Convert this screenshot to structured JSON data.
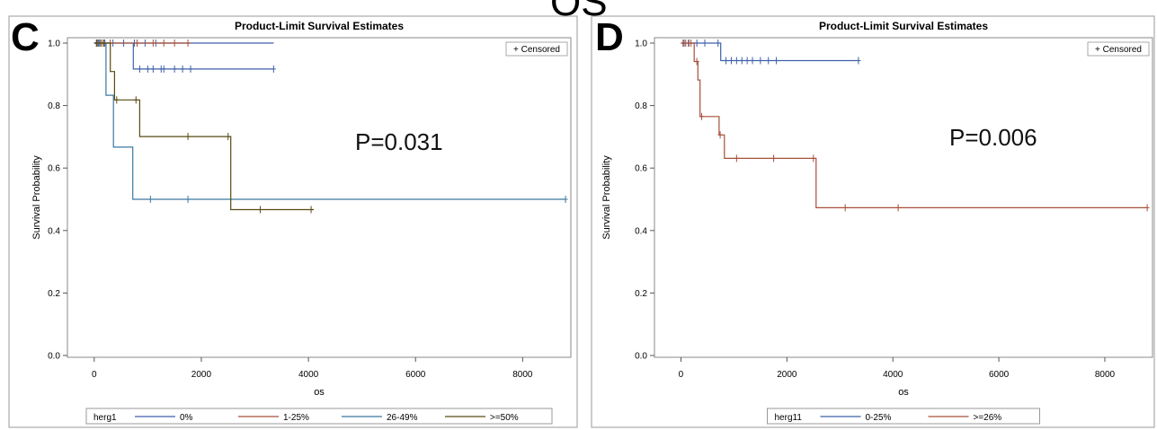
{
  "page_heading": "OS",
  "chart_data": [
    {
      "type": "line",
      "panel_letter": "C",
      "title": "Product-Limit Survival Estimates",
      "xlabel": "os",
      "ylabel": "Survival Probability",
      "xlim": [
        -500,
        8900
      ],
      "ylim": [
        0,
        1.0
      ],
      "x_ticks": [
        0,
        2000,
        4000,
        6000,
        8000
      ],
      "y_ticks": [
        0.0,
        0.2,
        0.4,
        0.6,
        0.8,
        1.0
      ],
      "grid": false,
      "censored_legend": "+ Censored",
      "p_value_text": "P=0.031",
      "legend_title": "herg1",
      "legend_position": "bottom",
      "series": [
        {
          "name": "0%",
          "color": "#3f5fa8",
          "steps": [
            [
              0,
              1.0
            ],
            [
              3350,
              1.0
            ]
          ],
          "censored": [
            [
              40,
              1.0
            ],
            [
              100,
              1.0
            ],
            [
              200,
              1.0
            ],
            [
              350,
              1.0
            ],
            [
              550,
              1.0
            ],
            [
              750,
              1.0
            ],
            [
              950,
              1.0
            ],
            [
              1150,
              1.0
            ]
          ]
        },
        {
          "name": "1-25%",
          "color": "#a5503a",
          "steps": [
            [
              0,
              1.0
            ],
            [
              1800,
              1.0
            ]
          ],
          "censored": [
            [
              60,
              1.0
            ],
            [
              150,
              1.0
            ],
            [
              300,
              1.0
            ],
            [
              800,
              1.0
            ],
            [
              1100,
              1.0
            ],
            [
              1300,
              1.0
            ],
            [
              1500,
              1.0
            ],
            [
              1750,
              1.0
            ]
          ]
        },
        {
          "name": "26-49%",
          "color": "#3a78a0",
          "steps": [
            [
              0,
              1.0
            ],
            [
              220,
              1.0
            ],
            [
              220,
              0.833
            ],
            [
              360,
              0.833
            ],
            [
              360,
              0.667
            ],
            [
              720,
              0.667
            ],
            [
              720,
              0.5
            ],
            [
              8800,
              0.5
            ]
          ],
          "censored": [
            [
              80,
              1.0
            ],
            [
              1050,
              0.5
            ],
            [
              1750,
              0.5
            ],
            [
              8800,
              0.5
            ]
          ]
        },
        {
          "name": ">=50%",
          "color": "#5a4a12",
          "steps": [
            [
              0,
              1.0
            ],
            [
              300,
              1.0
            ],
            [
              300,
              0.909
            ],
            [
              380,
              0.909
            ],
            [
              380,
              0.818
            ],
            [
              850,
              0.818
            ],
            [
              850,
              0.701
            ],
            [
              2550,
              0.701
            ],
            [
              2550,
              0.467
            ],
            [
              4100,
              0.467
            ]
          ],
          "censored": [
            [
              50,
              1.0
            ],
            [
              120,
              1.0
            ],
            [
              180,
              1.0
            ],
            [
              420,
              0.818
            ],
            [
              780,
              0.818
            ],
            [
              1750,
              0.701
            ],
            [
              2500,
              0.701
            ],
            [
              3100,
              0.467
            ],
            [
              4050,
              0.467
            ]
          ]
        },
        {
          "name": "0%",
          "color": "#3f5fa8",
          "steps": [
            [
              730,
              1.0
            ],
            [
              730,
              0.917
            ],
            [
              3350,
              0.917
            ]
          ],
          "censored": [
            [
              850,
              0.917
            ],
            [
              1000,
              0.917
            ],
            [
              1100,
              0.917
            ],
            [
              1250,
              0.917
            ],
            [
              1300,
              0.917
            ],
            [
              1500,
              0.917
            ],
            [
              1650,
              0.917
            ],
            [
              1800,
              0.917
            ],
            [
              3350,
              0.917
            ]
          ]
        }
      ]
    },
    {
      "type": "line",
      "panel_letter": "D",
      "title": "Product-Limit Survival Estimates",
      "xlabel": "os",
      "ylabel": "Survival Probability",
      "xlim": [
        -500,
        8900
      ],
      "ylim": [
        0,
        1.0
      ],
      "x_ticks": [
        0,
        2000,
        4000,
        6000,
        8000
      ],
      "y_ticks": [
        0.0,
        0.2,
        0.4,
        0.6,
        0.8,
        1.0
      ],
      "grid": false,
      "censored_legend": "+ Censored",
      "p_value_text": "P=0.006",
      "legend_title": "herg11",
      "legend_position": "bottom",
      "series": [
        {
          "name": "0-25%",
          "color": "#3f5fa8",
          "steps": [
            [
              0,
              1.0
            ],
            [
              750,
              1.0
            ],
            [
              750,
              0.944
            ],
            [
              3350,
              0.944
            ]
          ],
          "censored": [
            [
              60,
              1.0
            ],
            [
              150,
              1.0
            ],
            [
              300,
              1.0
            ],
            [
              450,
              1.0
            ],
            [
              700,
              1.0
            ],
            [
              850,
              0.944
            ],
            [
              950,
              0.944
            ],
            [
              1050,
              0.944
            ],
            [
              1150,
              0.944
            ],
            [
              1250,
              0.944
            ],
            [
              1350,
              0.944
            ],
            [
              1500,
              0.944
            ],
            [
              1650,
              0.944
            ],
            [
              1800,
              0.944
            ],
            [
              3350,
              0.944
            ]
          ]
        },
        {
          "name": ">=26%",
          "color": "#a5503a",
          "steps": [
            [
              0,
              1.0
            ],
            [
              250,
              1.0
            ],
            [
              250,
              0.941
            ],
            [
              320,
              0.941
            ],
            [
              320,
              0.882
            ],
            [
              360,
              0.882
            ],
            [
              360,
              0.765
            ],
            [
              720,
              0.765
            ],
            [
              720,
              0.706
            ],
            [
              820,
              0.706
            ],
            [
              820,
              0.631
            ],
            [
              2550,
              0.631
            ],
            [
              2550,
              0.473
            ],
            [
              8800,
              0.473
            ]
          ],
          "censored": [
            [
              40,
              1.0
            ],
            [
              90,
              1.0
            ],
            [
              140,
              1.0
            ],
            [
              190,
              1.0
            ],
            [
              300,
              0.941
            ],
            [
              390,
              0.765
            ],
            [
              740,
              0.706
            ],
            [
              1050,
              0.631
            ],
            [
              1750,
              0.631
            ],
            [
              2500,
              0.631
            ],
            [
              3100,
              0.473
            ],
            [
              4100,
              0.473
            ],
            [
              8800,
              0.473
            ]
          ]
        }
      ]
    }
  ]
}
